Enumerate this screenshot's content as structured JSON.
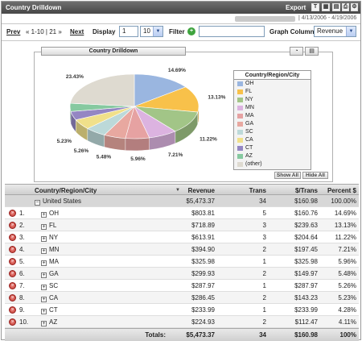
{
  "title": "Country Drilldown",
  "export_label": "Export",
  "export_icons": [
    "text-export-icon",
    "excel-export-icon",
    "chart-export-icon"
  ],
  "tool_icons": [
    "print-icon",
    "settings-icon"
  ],
  "date_range": "| 4/13/2006 - 4/19/2006",
  "controls": {
    "prev": "Prev",
    "range": "« 1-10 | 21 »",
    "next": "Next",
    "display_label": "Display",
    "display_value": "1",
    "display_count": "10",
    "filter_label": "Filter",
    "filter_value": "",
    "graph_column_label": "Graph Column",
    "graph_column_value": "Revenue"
  },
  "chart": {
    "tab_title": "Country Drilldown",
    "legend_title": "Country/Region/City",
    "show_all": "Show All",
    "hide_all": "Hide All"
  },
  "chart_data": {
    "type": "pie",
    "categories": [
      "OH",
      "FL",
      "NY",
      "MN",
      "MA",
      "GA",
      "SC",
      "CA",
      "CT",
      "AZ",
      "(other)"
    ],
    "values": [
      14.69,
      13.13,
      11.22,
      7.21,
      5.96,
      5.48,
      5.26,
      5.23,
      4.28,
      4.11,
      23.43
    ],
    "labels": [
      "14.69%",
      "13.13%",
      "11.22%",
      "7.21%",
      "5.96%",
      "5.48%",
      "5.26%",
      "5.23%",
      "",
      "",
      "23.43%"
    ],
    "colors": [
      "#9ab6e0",
      "#f8c14a",
      "#a2c587",
      "#dcb3e0",
      "#e6a2a2",
      "#e8a8a0",
      "#bcd9d9",
      "#f0e08a",
      "#9486c3",
      "#86c9a0",
      "#dedad0"
    ],
    "legend_position": "right"
  },
  "table": {
    "headers": {
      "name": "Country/Region/City",
      "revenue": "Revenue",
      "trans": "Trans",
      "per_trans": "$/Trans",
      "percent": "Percent $"
    },
    "group": {
      "name": "United States",
      "revenue": "$5,473.37",
      "trans": "34",
      "per_trans": "$160.98",
      "percent": "100.00%"
    },
    "rows": [
      {
        "num": "1.",
        "name": "OH",
        "revenue": "$803.81",
        "trans": "5",
        "per_trans": "$160.76",
        "percent": "14.69%"
      },
      {
        "num": "2.",
        "name": "FL",
        "revenue": "$718.89",
        "trans": "3",
        "per_trans": "$239.63",
        "percent": "13.13%"
      },
      {
        "num": "3.",
        "name": "NY",
        "revenue": "$613.91",
        "trans": "3",
        "per_trans": "$204.64",
        "percent": "11.22%"
      },
      {
        "num": "4.",
        "name": "MN",
        "revenue": "$394.90",
        "trans": "2",
        "per_trans": "$197.45",
        "percent": "7.21%"
      },
      {
        "num": "5.",
        "name": "MA",
        "revenue": "$325.98",
        "trans": "1",
        "per_trans": "$325.98",
        "percent": "5.96%"
      },
      {
        "num": "6.",
        "name": "GA",
        "revenue": "$299.93",
        "trans": "2",
        "per_trans": "$149.97",
        "percent": "5.48%"
      },
      {
        "num": "7.",
        "name": "SC",
        "revenue": "$287.97",
        "trans": "1",
        "per_trans": "$287.97",
        "percent": "5.26%"
      },
      {
        "num": "8.",
        "name": "CA",
        "revenue": "$286.45",
        "trans": "2",
        "per_trans": "$143.23",
        "percent": "5.23%"
      },
      {
        "num": "9.",
        "name": "CT",
        "revenue": "$233.99",
        "trans": "1",
        "per_trans": "$233.99",
        "percent": "4.28%"
      },
      {
        "num": "10.",
        "name": "AZ",
        "revenue": "$224.93",
        "trans": "2",
        "per_trans": "$112.47",
        "percent": "4.11%"
      }
    ],
    "totals": {
      "label": "Totals:",
      "revenue": "$5,473.37",
      "trans": "34",
      "per_trans": "$160.98",
      "percent": "100%"
    }
  }
}
